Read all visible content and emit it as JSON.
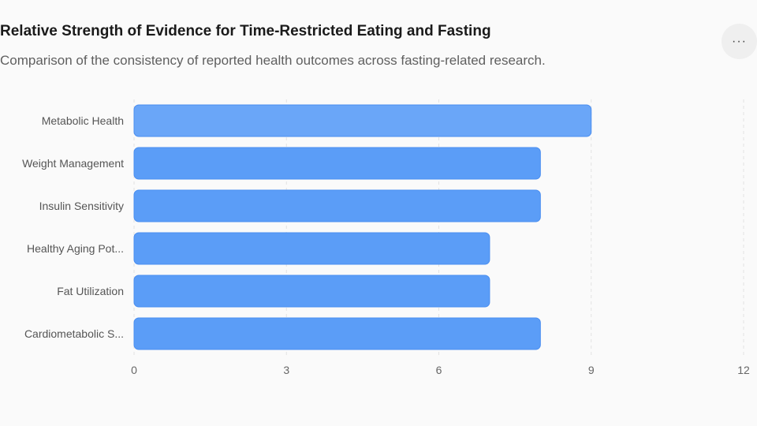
{
  "header": {
    "title": "Relative Strength of Evidence for Time-Restricted Eating and Fasting",
    "subtitle": "Comparison of the consistency of reported health outcomes across fasting-related research."
  },
  "toolbar": {
    "more_icon": "more-horizontal-icon",
    "more_label": "···"
  },
  "chart_data": {
    "type": "bar",
    "orientation": "horizontal",
    "title": "Relative Strength of Evidence for Time-Restricted Eating and Fasting",
    "subtitle": "Comparison of the consistency of reported health outcomes across fasting-related research.",
    "categories": [
      "Metabolic Health",
      "Weight Management",
      "Insulin Sensitivity",
      "Healthy Aging Pot...",
      "Fat Utilization",
      "Cardiometabolic S..."
    ],
    "values": [
      9,
      8,
      8,
      7,
      7,
      8
    ],
    "xlim": [
      0,
      12
    ],
    "xticks": [
      0,
      3,
      6,
      9,
      12
    ],
    "grid": true,
    "colors": {
      "bar": "#5b9df7",
      "bar_highlight": "#6aa6f8",
      "bar_stroke": "#4a8ef0",
      "grid": "#e2e2e2"
    },
    "highlight_index": 0
  }
}
